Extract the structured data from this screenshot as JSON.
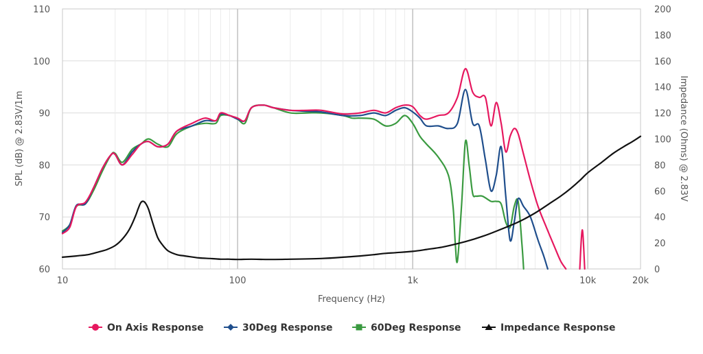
{
  "chart_data": {
    "type": "line",
    "xlabel": "Frequency (Hz)",
    "ylabel": "SPL (dB) @ 2.83V/1m",
    "y2label": "Impedance (Ohms) @ 2.83V",
    "x_scale": "log",
    "xlim": [
      10,
      20000
    ],
    "ylim": [
      60,
      110
    ],
    "y2lim": [
      0,
      200
    ],
    "grid": true,
    "legend_position": "bottom",
    "x_ticks": [
      {
        "value": 10,
        "label": "10"
      },
      {
        "value": 100,
        "label": "100"
      },
      {
        "value": 1000,
        "label": "1k"
      },
      {
        "value": 10000,
        "label": "10k"
      },
      {
        "value": 20000,
        "label": "20k"
      }
    ],
    "y_ticks": [
      "60",
      "70",
      "80",
      "90",
      "100",
      "110"
    ],
    "y2_ticks": [
      "0",
      "20",
      "40",
      "60",
      "80",
      "100",
      "120",
      "140",
      "160",
      "180",
      "200"
    ],
    "series": [
      {
        "name": "On Axis Response",
        "color": "#e6185f",
        "marker": "circle",
        "axis": "left",
        "x": [
          10,
          11,
          12,
          13.5,
          15,
          17,
          19,
          20,
          22,
          25,
          28,
          31,
          35,
          40,
          45,
          55,
          65,
          75,
          80,
          90,
          100,
          110,
          120,
          140,
          160,
          200,
          250,
          300,
          400,
          500,
          600,
          700,
          800,
          900,
          1000,
          1100,
          1200,
          1400,
          1600,
          1800,
          2000,
          2200,
          2400,
          2600,
          2800,
          3000,
          3200,
          3400,
          3600,
          3800,
          4000,
          4300,
          4700,
          5200,
          5800,
          6500,
          7000,
          7500
        ],
        "y": [
          66.8,
          68,
          72,
          72.8,
          75.5,
          79.5,
          82,
          82,
          80,
          82,
          84,
          84.5,
          83.5,
          84,
          86.5,
          88,
          89,
          88.5,
          90,
          89.5,
          89,
          88.5,
          91,
          91.5,
          91,
          90.5,
          90.5,
          90.5,
          89.8,
          90,
          90.5,
          90,
          91,
          91.5,
          91.2,
          89.5,
          88.8,
          89.5,
          90,
          93,
          98.5,
          94,
          93,
          93,
          87.5,
          92,
          88,
          82.5,
          85.5,
          87,
          86,
          82,
          77,
          72,
          68,
          64,
          61.5,
          60
        ]
      },
      {
        "name": "On Axis Response",
        "color": "#e6185f",
        "marker": "circle",
        "axis": "left",
        "x": [
          9000,
          9300,
          9600
        ],
        "y": [
          60,
          67.5,
          60
        ]
      },
      {
        "name": "30Deg Response",
        "color": "#1f4e8c",
        "marker": "diamond",
        "axis": "left",
        "x": [
          10,
          11,
          12,
          13.5,
          15,
          17,
          19,
          20,
          22,
          25,
          28,
          31,
          35,
          40,
          45,
          55,
          65,
          75,
          80,
          90,
          100,
          110,
          120,
          140,
          160,
          200,
          250,
          300,
          400,
          500,
          600,
          700,
          800,
          900,
          1000,
          1100,
          1200,
          1400,
          1600,
          1800,
          2000,
          2200,
          2400,
          2600,
          2800,
          3000,
          3200,
          3400,
          3600,
          3800,
          4000,
          4300,
          4700,
          5200,
          5600,
          5900
        ],
        "y": [
          67,
          68.5,
          72.2,
          72.5,
          75.5,
          79.5,
          82,
          82,
          80,
          82.5,
          84,
          84.5,
          83.5,
          84,
          86.5,
          87.5,
          88.5,
          88.5,
          89.8,
          89.5,
          88.8,
          88.5,
          91,
          91.5,
          91,
          90.5,
          90.3,
          90.2,
          89.5,
          89.5,
          90,
          89.5,
          90.5,
          91,
          90.2,
          89,
          87.5,
          87.5,
          87,
          88,
          94.5,
          88,
          87.5,
          81,
          75,
          78,
          83.5,
          74,
          65.5,
          69,
          73.5,
          72,
          70,
          65.5,
          62.5,
          60
        ]
      },
      {
        "name": "60Deg Response",
        "color": "#3a9a40",
        "marker": "square",
        "axis": "left",
        "x": [
          10,
          11,
          12,
          13.5,
          15,
          17,
          19,
          20,
          22,
          25,
          28,
          31,
          35,
          40,
          45,
          55,
          65,
          75,
          80,
          90,
          100,
          110,
          120,
          140,
          160,
          200,
          250,
          300,
          400,
          450,
          500,
          600,
          700,
          800,
          900,
          1000,
          1100,
          1200,
          1400,
          1600,
          1700,
          1750,
          1800,
          1900,
          2000,
          2100,
          2200,
          2300,
          2500,
          2800,
          3000,
          3200,
          3400,
          3600,
          3800,
          4000,
          4200,
          4300
        ],
        "y": [
          67.3,
          68.5,
          72,
          72.5,
          75,
          79,
          82,
          82.2,
          80.5,
          83,
          84,
          85,
          84,
          83.5,
          86,
          87.5,
          88,
          88,
          89.5,
          89.5,
          88.8,
          88,
          91,
          91.5,
          91,
          90,
          90,
          90,
          89.5,
          89,
          89,
          88.8,
          87.5,
          88,
          89.5,
          88,
          85.5,
          84,
          81.5,
          78,
          72,
          65,
          61.5,
          72,
          84.5,
          80,
          74.5,
          74,
          74,
          73,
          73,
          72.5,
          69,
          68,
          72,
          73,
          65,
          60
        ]
      },
      {
        "name": "Impedance Response",
        "color": "#111111",
        "marker": "triangle",
        "axis": "right",
        "x": [
          10,
          12,
          14,
          16,
          18,
          20,
          22,
          24,
          26,
          27,
          28,
          29,
          30,
          31,
          32,
          33,
          35,
          37,
          40,
          45,
          50,
          60,
          70,
          80,
          90,
          100,
          120,
          150,
          200,
          300,
          400,
          500,
          600,
          700,
          800,
          1000,
          1200,
          1500,
          2000,
          2500,
          3000,
          4000,
          5000,
          6000,
          7000,
          8000,
          9000,
          10000,
          12000,
          14000,
          16000,
          18000,
          20000
        ],
        "y": [
          9,
          10,
          11,
          13,
          15,
          18,
          23,
          30,
          40,
          46,
          51,
          52,
          50,
          46,
          40,
          34,
          24,
          19,
          14,
          11,
          10,
          8.5,
          8,
          7.5,
          7.5,
          7.3,
          7.5,
          7.3,
          7.5,
          8,
          9,
          10,
          11,
          12,
          12.5,
          13.5,
          15,
          17,
          21,
          25,
          29,
          36,
          43,
          50,
          56,
          62,
          68,
          74,
          82,
          89,
          94,
          98,
          102
        ]
      }
    ]
  }
}
